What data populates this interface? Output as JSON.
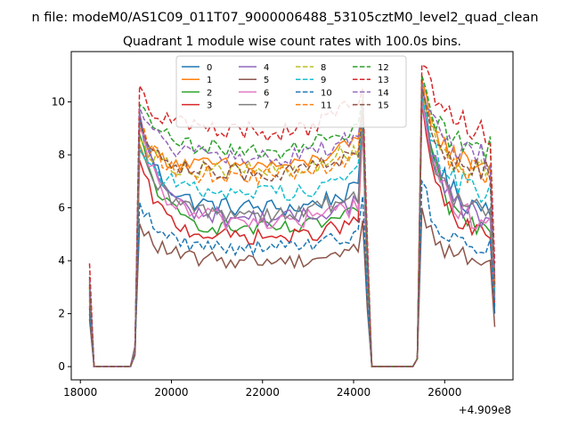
{
  "figure": {
    "suptitle": "n file: modeM0/AS1C09_011T07_9000006488_53105cztM0_level2_quad_clean",
    "title": "Quadrant 1 module wise count rates with 100.0s bins."
  },
  "chart_data": {
    "type": "line",
    "title": "Quadrant 1 module wise count rates with 100.0s bins.",
    "xlabel": "",
    "ylabel": "",
    "x_offset_label": "+4.909e8",
    "xlim": [
      17800,
      27500
    ],
    "ylim": [
      -0.5,
      11.9
    ],
    "xticks": [
      18000,
      20000,
      22000,
      24000,
      26000
    ],
    "xtick_labels": [
      "18000",
      "20000",
      "22000",
      "24000",
      "26000"
    ],
    "yticks": [
      0,
      2,
      4,
      6,
      8,
      10
    ],
    "ytick_labels": [
      "0",
      "2",
      "4",
      "6",
      "8",
      "10"
    ],
    "grid": false,
    "legend_placement": "top-center",
    "legend_columns": 4,
    "x_start": 18200,
    "x_step": 100,
    "segments": [
      {
        "t_start": 18200,
        "t_end": 18300,
        "kind": "ramp"
      },
      {
        "t_start": 18300,
        "t_end": 19100,
        "kind": "zero"
      },
      {
        "t_start": 19200,
        "t_end": 19300,
        "kind": "ramp"
      },
      {
        "t_start": 19300,
        "t_end": 24200,
        "kind": "on"
      },
      {
        "t_start": 24300,
        "t_end": 24400,
        "kind": "ramp"
      },
      {
        "t_start": 24400,
        "t_end": 25400,
        "kind": "zero"
      },
      {
        "t_start": 25400,
        "t_end": 25500,
        "kind": "ramp"
      },
      {
        "t_start": 25500,
        "t_end": 27100,
        "kind": "on"
      }
    ],
    "series": [
      {
        "name": "0",
        "color": "#1f77b4",
        "dashed": false,
        "start": 2.0,
        "level": 6.0,
        "peak": 9.4,
        "late_peak": 10.2,
        "end": 2.0,
        "jitter": 0.35
      },
      {
        "name": "1",
        "color": "#ff7f0e",
        "dashed": false,
        "start": 3.0,
        "level": 7.6,
        "peak": 8.4,
        "late_peak": 10.8,
        "end": 3.0,
        "jitter": 0.3
      },
      {
        "name": "2",
        "color": "#2ca02c",
        "dashed": false,
        "start": 2.5,
        "level": 5.2,
        "peak": 8.8,
        "late_peak": 10.3,
        "end": 2.5,
        "jitter": 0.3
      },
      {
        "name": "3",
        "color": "#d62728",
        "dashed": false,
        "start": 2.3,
        "level": 4.9,
        "peak": 7.8,
        "late_peak": 10.0,
        "end": 2.3,
        "jitter": 0.3
      },
      {
        "name": "4",
        "color": "#9467bd",
        "dashed": false,
        "start": 2.8,
        "level": 5.6,
        "peak": 9.6,
        "late_peak": 10.5,
        "end": 2.8,
        "jitter": 0.35
      },
      {
        "name": "5",
        "color": "#8c564b",
        "dashed": false,
        "start": 1.8,
        "level": 4.0,
        "peak": 5.4,
        "late_peak": 6.0,
        "end": 1.5,
        "jitter": 0.3
      },
      {
        "name": "6",
        "color": "#e377c2",
        "dashed": false,
        "start": 2.6,
        "level": 5.5,
        "peak": 9.0,
        "late_peak": 10.1,
        "end": 2.6,
        "jitter": 0.4
      },
      {
        "name": "7",
        "color": "#7f7f7f",
        "dashed": false,
        "start": 2.7,
        "level": 5.8,
        "peak": 8.2,
        "late_peak": 10.4,
        "end": 2.7,
        "jitter": 0.35
      },
      {
        "name": "8",
        "color": "#bcbd22",
        "dashed": true,
        "start": 3.2,
        "level": 7.4,
        "peak": 8.6,
        "late_peak": 10.6,
        "end": 3.2,
        "jitter": 0.35
      },
      {
        "name": "9",
        "color": "#17becf",
        "dashed": true,
        "start": 2.9,
        "level": 6.6,
        "peak": 8.3,
        "late_peak": 10.3,
        "end": 2.9,
        "jitter": 0.35
      },
      {
        "name": "10",
        "color": "#1f77b4",
        "dashed": true,
        "start": 2.2,
        "level": 4.5,
        "peak": 6.2,
        "late_peak": 7.0,
        "end": 2.2,
        "jitter": 0.3
      },
      {
        "name": "11",
        "color": "#ff7f0e",
        "dashed": true,
        "start": 3.0,
        "level": 7.2,
        "peak": 9.0,
        "late_peak": 10.9,
        "end": 3.0,
        "jitter": 0.35
      },
      {
        "name": "12",
        "color": "#2ca02c",
        "dashed": true,
        "start": 3.4,
        "level": 8.2,
        "peak": 9.9,
        "late_peak": 11.0,
        "end": 3.4,
        "jitter": 0.35
      },
      {
        "name": "13",
        "color": "#d62728",
        "dashed": true,
        "start": 3.9,
        "level": 8.9,
        "peak": 10.6,
        "late_peak": 11.4,
        "end": 3.9,
        "jitter": 0.4
      },
      {
        "name": "14",
        "color": "#9467bd",
        "dashed": true,
        "start": 3.3,
        "level": 7.9,
        "peak": 9.8,
        "late_peak": 10.7,
        "end": 3.3,
        "jitter": 0.35
      },
      {
        "name": "15",
        "color": "#8c564b",
        "dashed": true,
        "start": 3.1,
        "level": 7.3,
        "peak": 9.4,
        "late_peak": 10.5,
        "end": 3.1,
        "jitter": 0.35
      }
    ]
  }
}
